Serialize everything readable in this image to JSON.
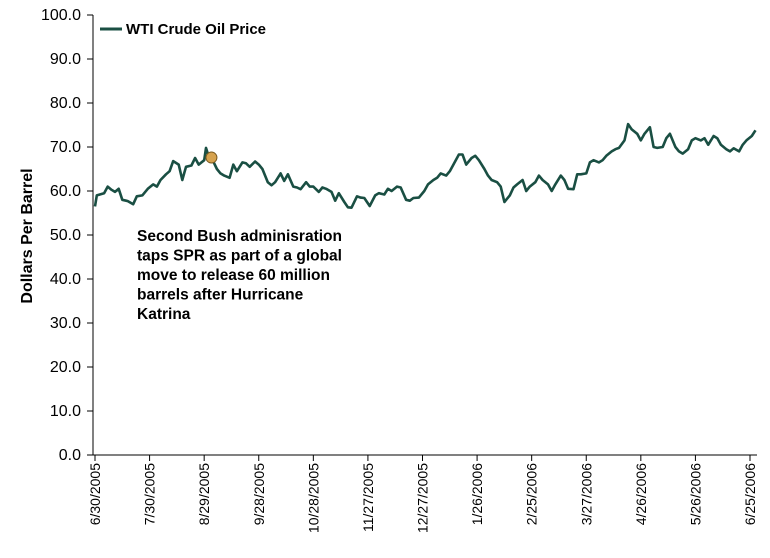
{
  "chart_data": {
    "type": "line",
    "ylabel": "Dollars Per Barrel",
    "xlabel": "",
    "ylim": [
      0,
      100
    ],
    "yticks": [
      "0.0",
      "10.0",
      "20.0",
      "30.0",
      "40.0",
      "50.0",
      "60.0",
      "70.0",
      "80.0",
      "90.0",
      "100.0"
    ],
    "xticks": [
      "6/30/2005",
      "7/30/2005",
      "8/29/2005",
      "9/28/2005",
      "10/28/2005",
      "11/27/2005",
      "12/27/2005",
      "1/26/2006",
      "2/25/2006",
      "3/27/2006",
      "4/26/2006",
      "5/26/2006",
      "6/25/2006"
    ],
    "legend": "top-left",
    "grid": false,
    "line_color": "#1a4f43",
    "marker_color": "#d6a24e",
    "series": [
      {
        "name": "WTI Crude Oil Price",
        "points": [
          [
            "6/30/2005",
            56.5
          ],
          [
            "7/1/2005",
            59.0
          ],
          [
            "7/5/2005",
            59.5
          ],
          [
            "7/7/2005",
            61.0
          ],
          [
            "7/9/2005",
            60.3
          ],
          [
            "7/11/2005",
            59.8
          ],
          [
            "7/13/2005",
            60.5
          ],
          [
            "7/15/2005",
            58.0
          ],
          [
            "7/18/2005",
            57.7
          ],
          [
            "7/21/2005",
            57.0
          ],
          [
            "7/23/2005",
            58.8
          ],
          [
            "7/26/2005",
            59.0
          ],
          [
            "7/29/2005",
            60.5
          ],
          [
            "8/1/2005",
            61.5
          ],
          [
            "8/3/2005",
            61.0
          ],
          [
            "8/5/2005",
            62.5
          ],
          [
            "8/8/2005",
            63.8
          ],
          [
            "8/10/2005",
            64.5
          ],
          [
            "8/12/2005",
            66.8
          ],
          [
            "8/15/2005",
            66.0
          ],
          [
            "8/17/2005",
            62.5
          ],
          [
            "8/19/2005",
            65.5
          ],
          [
            "8/22/2005",
            65.8
          ],
          [
            "8/24/2005",
            67.5
          ],
          [
            "8/26/2005",
            66.0
          ],
          [
            "8/29/2005",
            67.0
          ],
          [
            "8/30/2005",
            69.8
          ],
          [
            "8/31/2005",
            68.5
          ],
          [
            "9/2/2005",
            67.6
          ],
          [
            "9/5/2005",
            65.0
          ],
          [
            "9/7/2005",
            64.0
          ],
          [
            "9/9/2005",
            63.5
          ],
          [
            "9/12/2005",
            63.0
          ],
          [
            "9/14/2005",
            66.0
          ],
          [
            "9/16/2005",
            64.5
          ],
          [
            "9/19/2005",
            66.5
          ],
          [
            "9/21/2005",
            66.3
          ],
          [
            "9/23/2005",
            65.5
          ],
          [
            "9/26/2005",
            66.7
          ],
          [
            "9/28/2005",
            66.0
          ],
          [
            "9/30/2005",
            65.0
          ],
          [
            "10/3/2005",
            62.0
          ],
          [
            "10/5/2005",
            61.3
          ],
          [
            "10/7/2005",
            62.0
          ],
          [
            "10/10/2005",
            64.0
          ],
          [
            "10/12/2005",
            62.3
          ],
          [
            "10/14/2005",
            63.8
          ],
          [
            "10/17/2005",
            61.0
          ],
          [
            "10/19/2005",
            60.8
          ],
          [
            "10/21/2005",
            60.4
          ],
          [
            "10/24/2005",
            62.0
          ],
          [
            "10/26/2005",
            61.0
          ],
          [
            "10/28/2005",
            61.0
          ],
          [
            "10/31/2005",
            59.8
          ],
          [
            "11/2/2005",
            60.8
          ],
          [
            "11/4/2005",
            60.5
          ],
          [
            "11/7/2005",
            59.8
          ],
          [
            "11/9/2005",
            57.8
          ],
          [
            "11/11/2005",
            59.5
          ],
          [
            "11/14/2005",
            57.5
          ],
          [
            "11/16/2005",
            56.3
          ],
          [
            "11/18/2005",
            56.2
          ],
          [
            "11/21/2005",
            58.8
          ],
          [
            "11/23/2005",
            58.5
          ],
          [
            "11/25/2005",
            58.4
          ],
          [
            "11/28/2005",
            56.6
          ],
          [
            "12/1/2005",
            59.0
          ],
          [
            "12/3/2005",
            59.5
          ],
          [
            "12/6/2005",
            59.2
          ],
          [
            "12/8/2005",
            60.5
          ],
          [
            "12/10/2005",
            60.0
          ],
          [
            "12/13/2005",
            61.0
          ],
          [
            "12/15/2005",
            60.8
          ],
          [
            "12/18/2005",
            58.0
          ],
          [
            "12/20/2005",
            57.8
          ],
          [
            "12/22/2005",
            58.4
          ],
          [
            "12/25/2005",
            58.5
          ],
          [
            "12/28/2005",
            60.0
          ],
          [
            "12/30/2005",
            61.5
          ],
          [
            "1/2/2006",
            62.5
          ],
          [
            "1/4/2006",
            63.0
          ],
          [
            "1/6/2006",
            64.0
          ],
          [
            "1/9/2006",
            63.5
          ],
          [
            "1/11/2006",
            64.5
          ],
          [
            "1/13/2006",
            66.0
          ],
          [
            "1/16/2006",
            68.3
          ],
          [
            "1/18/2006",
            68.3
          ],
          [
            "1/20/2006",
            66.0
          ],
          [
            "1/23/2006",
            67.5
          ],
          [
            "1/25/2006",
            68.0
          ],
          [
            "1/27/2006",
            67.0
          ],
          [
            "1/30/2006",
            65.0
          ],
          [
            "2/1/2006",
            63.5
          ],
          [
            "2/3/2006",
            62.5
          ],
          [
            "2/6/2006",
            62.0
          ],
          [
            "2/8/2006",
            61.0
          ],
          [
            "2/10/2006",
            57.5
          ],
          [
            "2/13/2006",
            59.0
          ],
          [
            "2/15/2006",
            60.8
          ],
          [
            "2/17/2006",
            61.5
          ],
          [
            "2/20/2006",
            62.5
          ],
          [
            "2/22/2006",
            60.0
          ],
          [
            "2/24/2006",
            61.0
          ],
          [
            "2/27/2006",
            62.0
          ],
          [
            "3/1/2006",
            63.5
          ],
          [
            "3/3/2006",
            62.5
          ],
          [
            "3/6/2006",
            61.5
          ],
          [
            "3/8/2006",
            60.0
          ],
          [
            "3/10/2006",
            61.5
          ],
          [
            "3/13/2006",
            63.5
          ],
          [
            "3/15/2006",
            62.5
          ],
          [
            "3/17/2006",
            60.5
          ],
          [
            "3/20/2006",
            60.4
          ],
          [
            "3/22/2006",
            63.8
          ],
          [
            "3/24/2006",
            63.8
          ],
          [
            "3/27/2006",
            64.0
          ],
          [
            "3/29/2006",
            66.5
          ],
          [
            "3/31/2006",
            67.0
          ],
          [
            "4/3/2006",
            66.5
          ],
          [
            "4/5/2006",
            67.0
          ],
          [
            "4/7/2006",
            68.0
          ],
          [
            "4/10/2006",
            69.0
          ],
          [
            "4/12/2006",
            69.5
          ],
          [
            "4/14/2006",
            69.8
          ],
          [
            "4/17/2006",
            71.5
          ],
          [
            "4/19/2006",
            75.2
          ],
          [
            "4/21/2006",
            74.0
          ],
          [
            "4/24/2006",
            73.0
          ],
          [
            "4/26/2006",
            71.5
          ],
          [
            "4/28/2006",
            73.0
          ],
          [
            "5/1/2006",
            74.5
          ],
          [
            "5/3/2006",
            70.0
          ],
          [
            "5/5/2006",
            69.8
          ],
          [
            "5/8/2006",
            70.0
          ],
          [
            "5/10/2006",
            72.0
          ],
          [
            "5/12/2006",
            73.0
          ],
          [
            "5/15/2006",
            70.0
          ],
          [
            "5/17/2006",
            69.0
          ],
          [
            "5/19/2006",
            68.5
          ],
          [
            "5/22/2006",
            69.5
          ],
          [
            "5/24/2006",
            71.5
          ],
          [
            "5/26/2006",
            72.0
          ],
          [
            "5/29/2006",
            71.5
          ],
          [
            "5/31/2006",
            72.0
          ],
          [
            "6/2/2006",
            70.5
          ],
          [
            "6/5/2006",
            72.5
          ],
          [
            "6/7/2006",
            72.0
          ],
          [
            "6/9/2006",
            70.5
          ],
          [
            "6/12/2006",
            69.5
          ],
          [
            "6/14/2006",
            69.0
          ],
          [
            "6/16/2006",
            69.7
          ],
          [
            "6/19/2006",
            69.0
          ],
          [
            "6/21/2006",
            70.5
          ],
          [
            "6/23/2006",
            71.5
          ],
          [
            "6/26/2006",
            72.5
          ],
          [
            "6/28/2006",
            73.8
          ]
        ]
      }
    ],
    "annotations": [
      {
        "date": "9/2/2005",
        "value": 67.6,
        "lines": [
          "Second Bush adminisration",
          "taps SPR as part of a global",
          "move to release 60 million",
          "barrels after Hurricane",
          "Katrina"
        ]
      }
    ]
  }
}
